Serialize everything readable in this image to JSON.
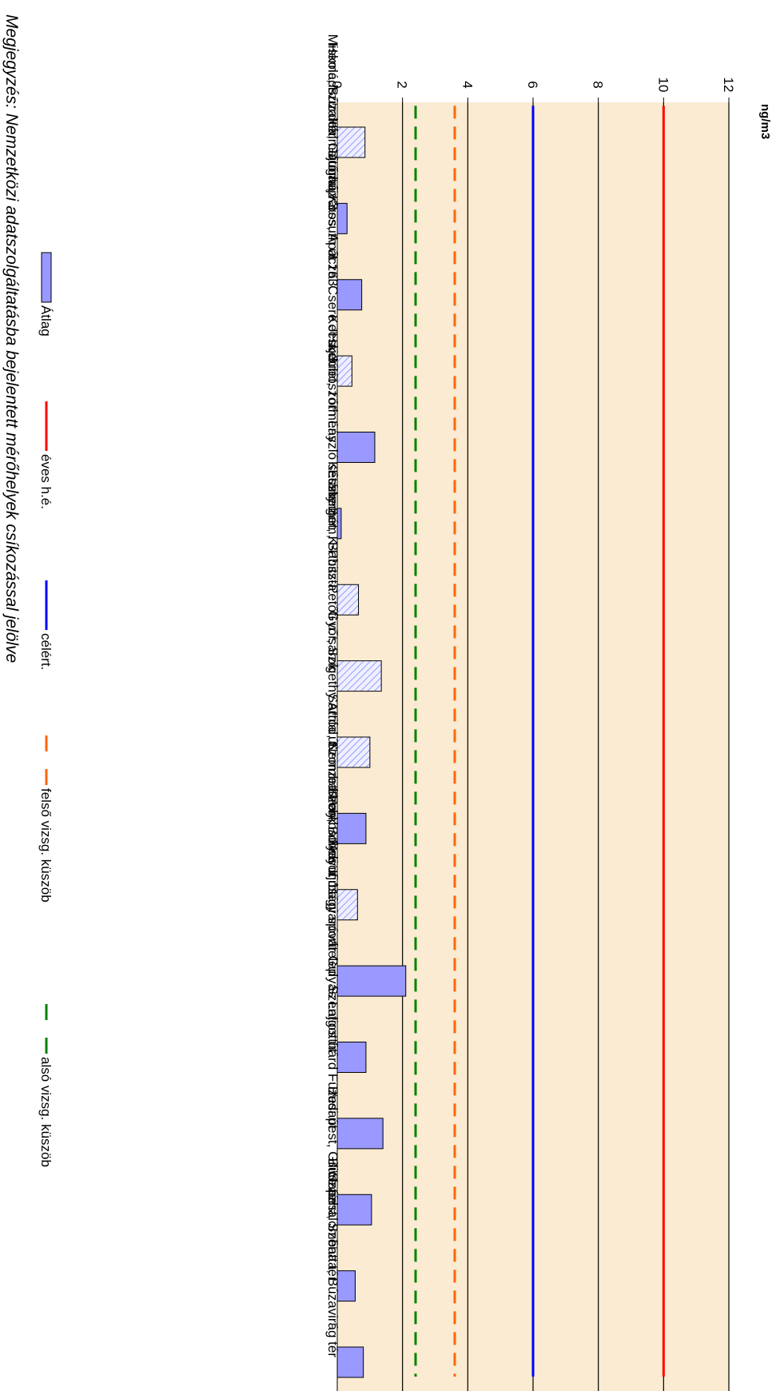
{
  "chart_data": {
    "type": "bar",
    "orientation": "horizontal",
    "unit": "ng/m3",
    "xlim": [
      0,
      12
    ],
    "ticks": [
      "0",
      "2",
      "4",
      "6",
      "8",
      "10",
      "12"
    ],
    "tick_values": [
      0,
      2,
      4,
      6,
      8,
      10,
      12
    ],
    "grid": true,
    "categories": [
      "Miskolc, Búza tér",
      "Hernádszurdok, Gátőrház 3.",
      "Halmajugra, Kossuth út 163.",
      "Dunaújváros, Apáczai Csere J. u. 3.",
      "Hajdúböszörmény",
      "Kecskemét, Tóth László sétány 2.",
      "Kecskemét, K-Puszta.",
      "Esztergom, Babits-Petőfi u. sarok",
      "Győr, Szigethy Attila út",
      "Sarród, Nemzeti Park",
      "Szombathely, Bolyai u. 11.",
      "Szombathely Ifjúsági sporttelep",
      "Mosonmagyaróvár Gulyás Lajios út",
      "Szentgotthárd Füzesi út",
      "Budapest, Gilice tér",
      "Budapest, Széna tér",
      "Százhalombatta, Búzavirág tér"
    ],
    "series": [
      {
        "name": "Átlag",
        "values": [
          0.85,
          0.3,
          0.75,
          0.45,
          1.15,
          0.12,
          0.65,
          1.35,
          1.0,
          0.88,
          0.62,
          2.1,
          0.88,
          1.4,
          1.05,
          0.55,
          0.8
        ],
        "hatched": [
          true,
          false,
          false,
          true,
          false,
          false,
          true,
          true,
          true,
          false,
          true,
          false,
          false,
          false,
          false,
          false,
          false
        ],
        "color": "#9999ff"
      }
    ],
    "reference_lines": [
      {
        "name": "éves h.é.",
        "value": 10,
        "color": "#ff0000",
        "style": "solid"
      },
      {
        "name": "célért.",
        "value": 6,
        "color": "#0000ff",
        "style": "solid"
      },
      {
        "name": "felső vizsg. küszöb",
        "value": 3.6,
        "color": "#ff6600",
        "style": "dashed"
      },
      {
        "name": "alsó vizsg. küszöb",
        "value": 2.4,
        "color": "#008000",
        "style": "dashed"
      }
    ],
    "legend_position": "left",
    "note": "Megjegyzés: Nemzetközi adatszolgáltatásba bejelentett mérőhelyek csíkozással jelölve",
    "background_color": "#faebd2",
    "bar_color": "#9999ff"
  }
}
